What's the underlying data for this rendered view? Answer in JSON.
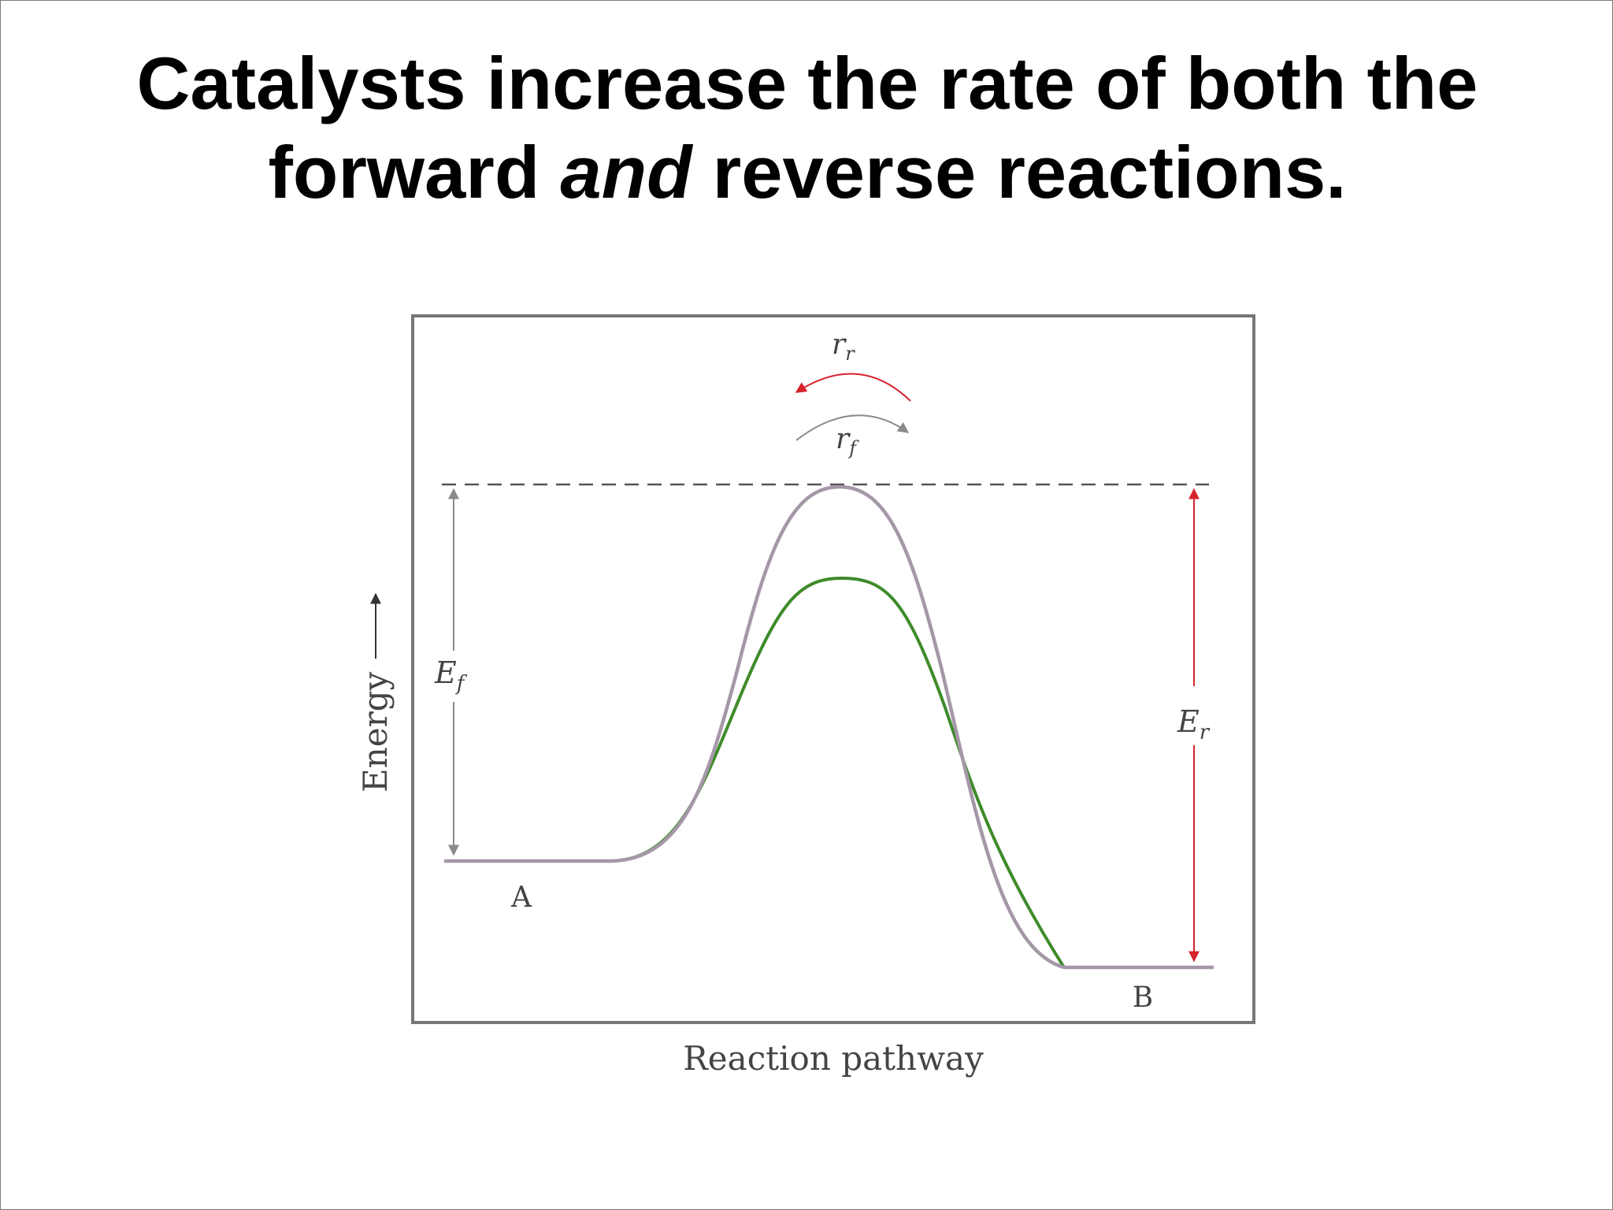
{
  "title": {
    "line1": "Catalysts increase the rate of both the",
    "line2_before": "forward ",
    "line2_emphasis": "and",
    "line2_after": " reverse reactions."
  },
  "diagram": {
    "y_axis_label": "Energy",
    "x_axis_label": "Reaction pathway",
    "reactant_label": "A",
    "product_label": "B",
    "forward_activation": {
      "symbol": "E",
      "subscript": "f"
    },
    "reverse_activation": {
      "symbol": "E",
      "subscript": "r"
    },
    "reverse_rate": {
      "symbol": "r",
      "subscript": "r"
    },
    "forward_rate": {
      "symbol": "r",
      "subscript": "f"
    },
    "colors": {
      "uncatalyzed_curve": "#a597a8",
      "catalyzed_curve": "#3e8b2a",
      "reverse_arrow": "#d6222b",
      "forward_arrow": "#8a8a8a",
      "frame": "#777777",
      "text": "#333333"
    }
  }
}
